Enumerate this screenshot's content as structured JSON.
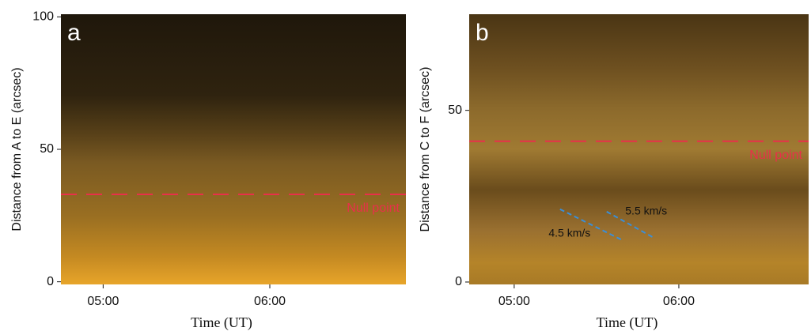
{
  "chart_data": [
    {
      "type": "image",
      "panel_label": "a",
      "xlabel": "Time  (UT)",
      "ylabel": "Distance from  A  to  E (arcsec)",
      "xlim": [
        284.8,
        409
      ],
      "ylim": [
        -1,
        101
      ],
      "xticks": [
        {
          "value": 300,
          "label": "05:00"
        },
        {
          "value": 360,
          "label": "06:00"
        }
      ],
      "yticks": [
        0,
        50,
        100
      ],
      "null_point": {
        "label": "Null point",
        "value": 33,
        "color": "#e8304a"
      }
    },
    {
      "type": "image",
      "panel_label": "b",
      "xlabel": "Time  (UT)",
      "ylabel": "Distance from  C  to  F (arcsec)",
      "xlim": [
        283.6,
        407.3
      ],
      "ylim": [
        -0.7,
        78
      ],
      "xticks": [
        {
          "value": 300,
          "label": "05:00"
        },
        {
          "value": 360,
          "label": "06:00"
        }
      ],
      "yticks": [
        0,
        50
      ],
      "null_point": {
        "label": "Null point",
        "value": 41,
        "color": "#e8304a"
      },
      "fit_color": "#3a8fd8",
      "fits": [
        {
          "label": "4.5 km/s",
          "x": [
            316.7,
            338.9
          ],
          "y": [
            21.2,
            12.4
          ]
        },
        {
          "label": "5.5 km/s",
          "x": [
            333.7,
            351.3
          ],
          "y": [
            20.5,
            12.7
          ]
        }
      ]
    }
  ]
}
